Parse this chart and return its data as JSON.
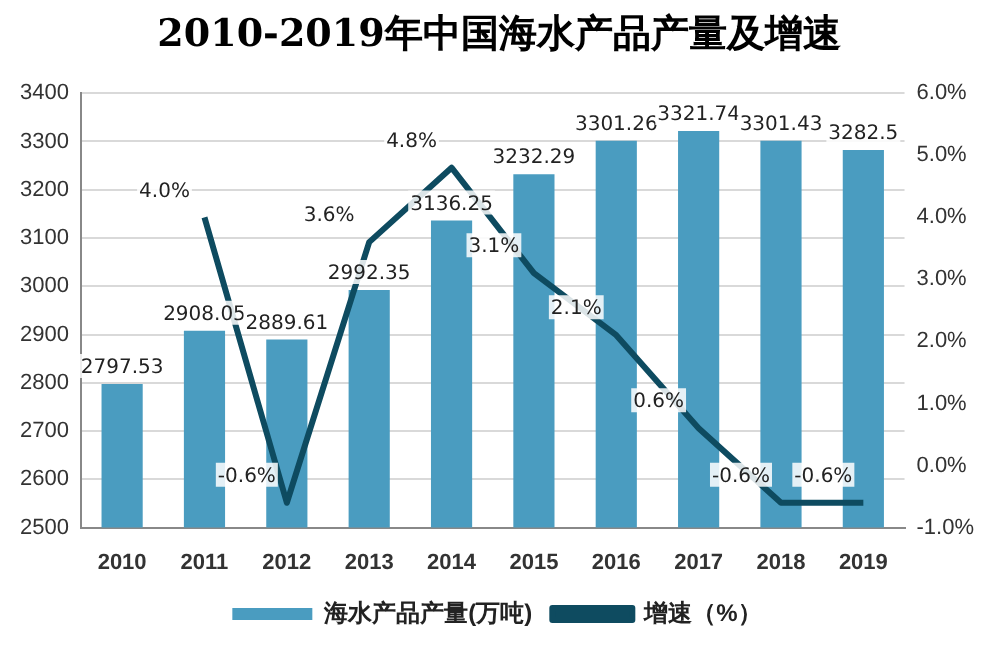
{
  "chart_data": {
    "type": "bar",
    "title": "2010-2019年中国海水产品产量及增速",
    "categories": [
      "2010",
      "2011",
      "2012",
      "2013",
      "2014",
      "2015",
      "2016",
      "2017",
      "2018",
      "2019"
    ],
    "series": [
      {
        "name": "海水产品产量(万吨)",
        "color": "#4a9cc0",
        "values": [
          2797.53,
          2908.05,
          2889.61,
          2992.35,
          3136.25,
          3232.29,
          3301.26,
          3321.74,
          3301.43,
          3282.5
        ],
        "value_labels": [
          "2797.53",
          "2908.05",
          "2889.61",
          "2992.35",
          "3136.25",
          "3232.29",
          "3301.26",
          "3321.74",
          "3301.43",
          "3282.5"
        ]
      },
      {
        "name": "增速（%）",
        "type": "line",
        "axis": "y2",
        "color": "#0e4b60",
        "values": [
          null,
          4.0,
          -0.6,
          3.6,
          4.8,
          3.1,
          2.1,
          0.6,
          -0.6,
          -0.6
        ],
        "value_labels": [
          null,
          "4.0%",
          "-0.6%",
          "3.6%",
          "4.8%",
          "3.1%",
          "2.1%",
          "0.6%",
          "-0.6%",
          "-0.6%"
        ]
      }
    ],
    "ylim": [
      2500,
      3400
    ],
    "yticks": [
      2500,
      2600,
      2700,
      2800,
      2900,
      3000,
      3100,
      3200,
      3300,
      3400
    ],
    "y2lim": [
      -1,
      6
    ],
    "y2ticks": [
      {
        "value": -1,
        "label": "-1.0%"
      },
      {
        "value": 0,
        "label": "0.0%"
      },
      {
        "value": 1,
        "label": "1.0%"
      },
      {
        "value": 2,
        "label": "2.0%"
      },
      {
        "value": 3,
        "label": "3.0%"
      },
      {
        "value": 4,
        "label": "4.0%"
      },
      {
        "value": 5,
        "label": "5.0%"
      },
      {
        "value": 6,
        "label": "6.0%"
      }
    ],
    "grid": "y",
    "legend": "bottom",
    "marker": "none",
    "line_style": "solid"
  }
}
